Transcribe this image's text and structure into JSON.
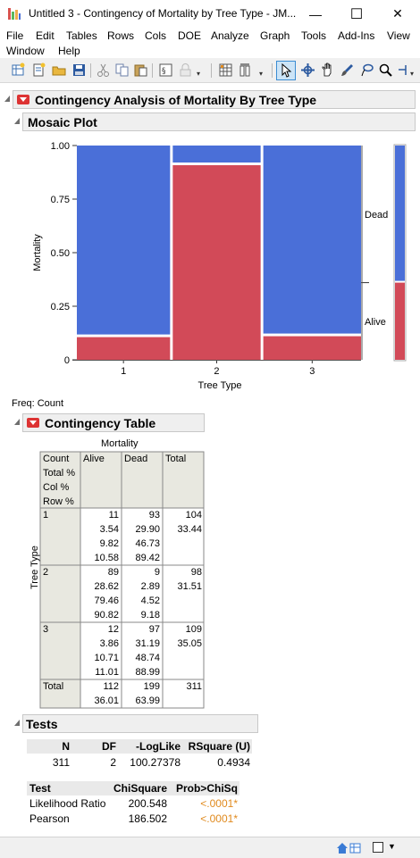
{
  "window": {
    "title": "Untitled 3 - Contingency of Mortality by Tree Type - JM...",
    "minimize": "—",
    "maximize": "☐",
    "close": "✕"
  },
  "menu": [
    "File",
    "Edit",
    "Tables",
    "Rows",
    "Cols",
    "DOE",
    "Analyze",
    "Graph",
    "Tools",
    "Add-Ins",
    "View",
    "Window",
    "Help"
  ],
  "report": {
    "title": "Contingency Analysis of Mortality By Tree Type",
    "mosaic_title": "Mosaic Plot",
    "freq_label": "Freq: Count",
    "contingency_title": "Contingency Table",
    "tests_title": "Tests"
  },
  "chart_data": {
    "type": "mosaic",
    "xlabel": "Tree Type",
    "ylabel": "Mortality",
    "categories": [
      "1",
      "2",
      "3"
    ],
    "category_widths": [
      104,
      98,
      109
    ],
    "series": [
      {
        "name": "Alive",
        "values": [
          0.1058,
          0.9082,
          0.1101
        ],
        "color": "#d24a58"
      },
      {
        "name": "Dead",
        "values": [
          0.8942,
          0.0918,
          0.8899
        ],
        "color": "#4a6fd8"
      }
    ],
    "overall": {
      "Alive": 0.3601,
      "Dead": 0.6399
    },
    "yticks": [
      "0",
      "0.25",
      "0.50",
      "0.75",
      "1.00"
    ],
    "ylim": [
      0,
      1
    ]
  },
  "contingency": {
    "col_var": "Mortality",
    "row_var": "Tree Type",
    "stat_labels": [
      "Count",
      "Total %",
      "Col %",
      "Row %"
    ],
    "columns": [
      "Alive",
      "Dead",
      "Total"
    ],
    "rows": [
      {
        "label": "1",
        "alive": [
          "11",
          "3.54",
          "9.82",
          "10.58"
        ],
        "dead": [
          "93",
          "29.90",
          "46.73",
          "89.42"
        ],
        "total": [
          "104",
          "33.44"
        ]
      },
      {
        "label": "2",
        "alive": [
          "89",
          "28.62",
          "79.46",
          "90.82"
        ],
        "dead": [
          "9",
          "2.89",
          "4.52",
          "9.18"
        ],
        "total": [
          "98",
          "31.51"
        ]
      },
      {
        "label": "3",
        "alive": [
          "12",
          "3.86",
          "10.71",
          "11.01"
        ],
        "dead": [
          "97",
          "31.19",
          "48.74",
          "88.99"
        ],
        "total": [
          "109",
          "35.05"
        ]
      }
    ],
    "total_row": {
      "label": "Total",
      "alive": [
        "112",
        "36.01"
      ],
      "dead": [
        "199",
        "63.99"
      ],
      "total": [
        "311"
      ]
    }
  },
  "tests": {
    "summary_headers": [
      "N",
      "DF",
      "-LogLike",
      "RSquare (U)"
    ],
    "summary_values": [
      "311",
      "2",
      "100.27378",
      "0.4934"
    ],
    "test_headers": [
      "Test",
      "ChiSquare",
      "Prob>ChiSq"
    ],
    "test_rows": [
      {
        "test": "Likelihood Ratio",
        "chisq": "200.548",
        "prob": "<.0001*"
      },
      {
        "test": "Pearson",
        "chisq": "186.502",
        "prob": "<.0001*"
      }
    ]
  }
}
